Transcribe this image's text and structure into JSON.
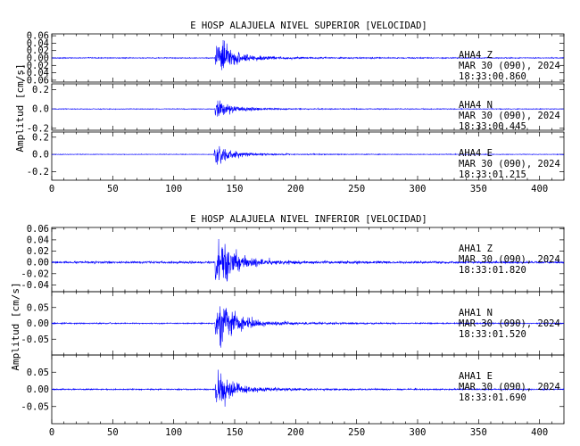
{
  "chart_data": [
    {
      "type": "line",
      "title": "E HOSP ALAJUELA NIVEL SUPERIOR [VELOCIDAD]",
      "ylabel": "Amplitud [cm/s]",
      "xlim": [
        0,
        420
      ],
      "xticks": [
        0,
        50,
        100,
        150,
        200,
        250,
        300,
        350,
        400
      ],
      "grid": false,
      "legend": "none",
      "line_color": "#0000ff",
      "series": [
        {
          "station": "AHA4",
          "component": "Z",
          "date": "MAR 30 (090), 2024",
          "time": "18:33:00.860",
          "ylim": [
            -0.065,
            0.065
          ],
          "yticks": [
            -0.06,
            -0.04,
            -0.02,
            0.0,
            0.02,
            0.04,
            0.06
          ],
          "ytick_labels": [
            "-0.06",
            "-0.04",
            "-0.02",
            "0.00",
            "0.02",
            "0.04",
            "0.06"
          ],
          "onset": 134,
          "noise": 0.001,
          "peak": 0.055,
          "decay": 0.09
        },
        {
          "station": "AHA4",
          "component": "N",
          "date": "MAR 30 (090), 2024",
          "time": "18:33:00.445",
          "ylim": [
            -0.22,
            0.26
          ],
          "yticks": [
            -0.2,
            0.0,
            0.2
          ],
          "ytick_labels": [
            "-0.2",
            "0.0",
            "0.2"
          ],
          "onset": 134,
          "noise": 0.003,
          "peak": 0.11,
          "decay": 0.1
        },
        {
          "station": "AHA4",
          "component": "E",
          "date": "MAR 30 (090), 2024",
          "time": "18:33:01.215",
          "ylim": [
            -0.3,
            0.26
          ],
          "yticks": [
            -0.2,
            0.0,
            0.2
          ],
          "ytick_labels": [
            "-0.2",
            "0.0",
            "0.2"
          ],
          "onset": 133,
          "noise": 0.003,
          "peak": 0.13,
          "decay": 0.09
        }
      ]
    },
    {
      "type": "line",
      "title": "E HOSP ALAJUELA NIVEL INFERIOR [VELOCIDAD]",
      "ylabel": "Amplitud [cm/s]",
      "xlim": [
        0,
        420
      ],
      "xticks": [
        0,
        50,
        100,
        150,
        200,
        250,
        300,
        350,
        400
      ],
      "grid": false,
      "legend": "none",
      "line_color": "#0000ff",
      "series": [
        {
          "station": "AHA1",
          "component": "Z",
          "date": "MAR 30 (090), 2024",
          "time": "18:33:01.820",
          "ylim": [
            -0.052,
            0.062
          ],
          "yticks": [
            -0.04,
            -0.02,
            0.0,
            0.02,
            0.04,
            0.06
          ],
          "ytick_labels": [
            "-0.04",
            "-0.02",
            "0.00",
            "0.02",
            "0.04",
            "0.06"
          ],
          "onset": 134,
          "noise": 0.0015,
          "peak": 0.055,
          "decay": 0.09
        },
        {
          "station": "AHA1",
          "component": "N",
          "date": "MAR 30 (090), 2024",
          "time": "18:33:01.520",
          "ylim": [
            -0.1,
            0.1
          ],
          "yticks": [
            -0.05,
            0.0,
            0.05
          ],
          "ytick_labels": [
            "-0.05",
            "0.00",
            "0.05"
          ],
          "onset": 134,
          "noise": 0.0015,
          "peak": 0.085,
          "decay": 0.09
        },
        {
          "station": "AHA1",
          "component": "E",
          "date": "MAR 30 (090), 2024",
          "time": "18:33:01.690",
          "ylim": [
            -0.1,
            0.1
          ],
          "yticks": [
            -0.05,
            0.0,
            0.05
          ],
          "ytick_labels": [
            "-0.05",
            "0.00",
            "0.05"
          ],
          "onset": 134,
          "noise": 0.0015,
          "peak": 0.06,
          "decay": 0.09
        }
      ]
    }
  ]
}
